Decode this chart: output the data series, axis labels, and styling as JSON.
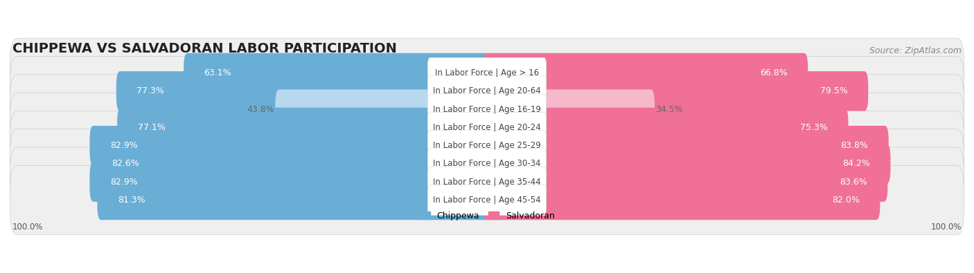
{
  "title": "CHIPPEWA VS SALVADORAN LABOR PARTICIPATION",
  "source": "Source: ZipAtlas.com",
  "categories": [
    "In Labor Force | Age > 16",
    "In Labor Force | Age 20-64",
    "In Labor Force | Age 16-19",
    "In Labor Force | Age 20-24",
    "In Labor Force | Age 25-29",
    "In Labor Force | Age 30-34",
    "In Labor Force | Age 35-44",
    "In Labor Force | Age 45-54"
  ],
  "chippewa_values": [
    63.1,
    77.3,
    43.8,
    77.1,
    82.9,
    82.6,
    82.9,
    81.3
  ],
  "salvadoran_values": [
    66.8,
    79.5,
    34.5,
    75.3,
    83.8,
    84.2,
    83.6,
    82.0
  ],
  "chippewa_color": "#6aaed6",
  "salvadoran_color": "#f07098",
  "chippewa_light_color": "#b8d8ee",
  "salvadoran_light_color": "#f8b8cc",
  "row_bg_color": "#efefef",
  "max_value": 100.0,
  "legend_chippewa": "Chippewa",
  "legend_salvadoran": "Salvadoran",
  "bottom_label": "100.0%",
  "title_fontsize": 14,
  "source_fontsize": 9,
  "bar_label_fontsize": 9,
  "category_fontsize": 8.5,
  "legend_fontsize": 9,
  "light_threshold": 50
}
